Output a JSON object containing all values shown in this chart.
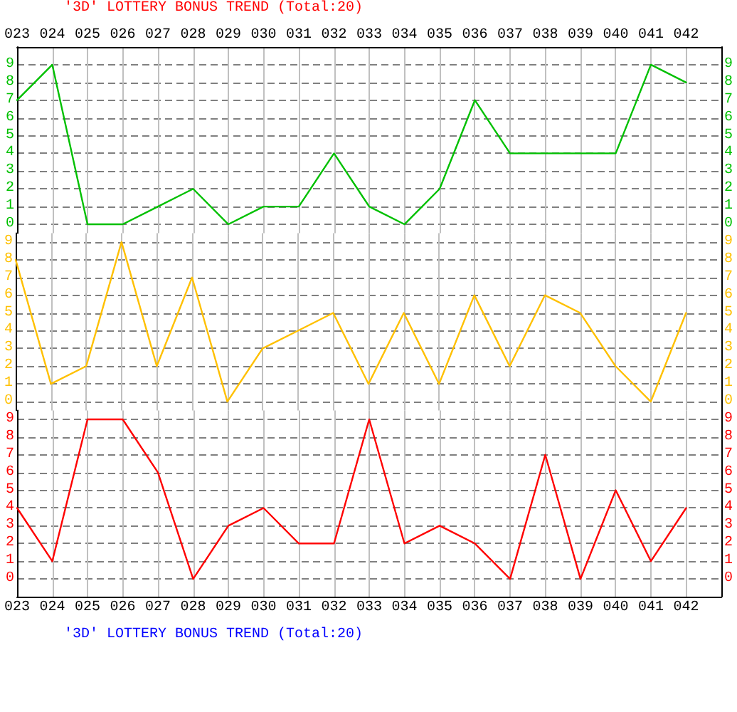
{
  "chart_data": [
    {
      "type": "line",
      "title": "'3D' LOTTERY BONUS TREND (Total:20)",
      "categories": [
        "023",
        "024",
        "025",
        "026",
        "027",
        "028",
        "029",
        "030",
        "031",
        "032",
        "033",
        "034",
        "035",
        "036",
        "037",
        "038",
        "039",
        "040",
        "041",
        "042"
      ],
      "values": [
        7,
        9,
        0,
        0,
        1,
        2,
        0,
        1,
        1,
        4,
        1,
        0,
        2,
        7,
        4,
        4,
        4,
        4,
        9,
        8
      ],
      "color": "#00c000",
      "ylim": [
        -0.5,
        10
      ],
      "yticks": [
        0,
        1,
        2,
        3,
        4,
        5,
        6,
        7,
        8,
        9
      ],
      "y2lim": [
        -0.5,
        10
      ],
      "y2ticks": [
        0,
        1,
        2,
        3,
        4,
        5,
        6,
        7,
        8,
        9
      ],
      "grid": true
    },
    {
      "type": "line",
      "categories": [
        "023",
        "024",
        "025",
        "026",
        "027",
        "028",
        "029",
        "030",
        "031",
        "032",
        "033",
        "034",
        "035",
        "036",
        "037",
        "038",
        "039",
        "040",
        "041",
        "042"
      ],
      "values": [
        8,
        1,
        2,
        9,
        2,
        7,
        0,
        3,
        4,
        5,
        1,
        5,
        1,
        6,
        2,
        6,
        5,
        2,
        0,
        5
      ],
      "color": "#ffc000",
      "ylim": [
        -0.5,
        9.5
      ],
      "yticks": [
        0,
        1,
        2,
        3,
        4,
        5,
        6,
        7,
        8,
        9
      ],
      "y2lim": [
        -0.5,
        9.5
      ],
      "y2ticks": [
        0,
        1,
        2,
        3,
        4,
        5,
        6,
        7,
        8,
        9
      ],
      "grid": true,
      "tick_labels": "y"
    },
    {
      "type": "line",
      "annotations": [
        "'3D' LOTTERY BONUS TREND (Total:20)"
      ],
      "categories": [
        "023",
        "024",
        "025",
        "026",
        "027",
        "028",
        "029",
        "030",
        "031",
        "032",
        "033",
        "034",
        "035",
        "036",
        "037",
        "038",
        "039",
        "040",
        "041",
        "042"
      ],
      "values": [
        4,
        1,
        9,
        9,
        6,
        0,
        3,
        4,
        2,
        2,
        9,
        2,
        3,
        2,
        0,
        7,
        0,
        5,
        1,
        4
      ],
      "color": "#ff0000",
      "ylim": [
        -1,
        9.5
      ],
      "yticks": [
        0,
        1,
        2,
        3,
        4,
        5,
        6,
        7,
        8,
        9
      ],
      "y2lim": [
        -1,
        9.5
      ],
      "y2ticks": [
        0,
        1,
        2,
        3,
        4,
        5,
        6,
        7,
        8,
        9
      ],
      "grid": true
    }
  ]
}
